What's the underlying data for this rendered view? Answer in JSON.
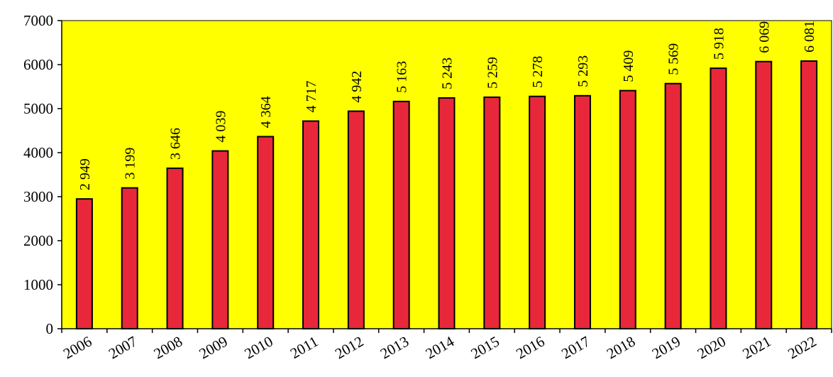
{
  "chart_data": {
    "type": "bar",
    "title": "",
    "xlabel": "",
    "ylabel": "",
    "categories": [
      "2006",
      "2007",
      "2008",
      "2009",
      "2010",
      "2011",
      "2012",
      "2013",
      "2014",
      "2015",
      "2016",
      "2017",
      "2018",
      "2019",
      "2020",
      "2021",
      "2022"
    ],
    "values": [
      2949,
      3199,
      3646,
      4039,
      4364,
      4717,
      4942,
      5163,
      5243,
      5259,
      5278,
      5293,
      5409,
      5569,
      5918,
      6069,
      6081
    ],
    "value_labels": [
      "2 949",
      "3 199",
      "3 646",
      "4 039",
      "4 364",
      "4 717",
      "4 942",
      "5 163",
      "5 243",
      "5 259",
      "5 278",
      "5 293",
      "5 409",
      "5 569",
      "5 918",
      "6 069",
      "6 081"
    ],
    "ylim": [
      0,
      7000
    ],
    "yticks": [
      0,
      1000,
      2000,
      3000,
      4000,
      5000,
      6000,
      7000
    ],
    "grid": false,
    "legend": "none",
    "colors": {
      "plot_background": "#ffff00",
      "bar_fill": "#e8283a",
      "bar_stroke": "#000000"
    }
  }
}
